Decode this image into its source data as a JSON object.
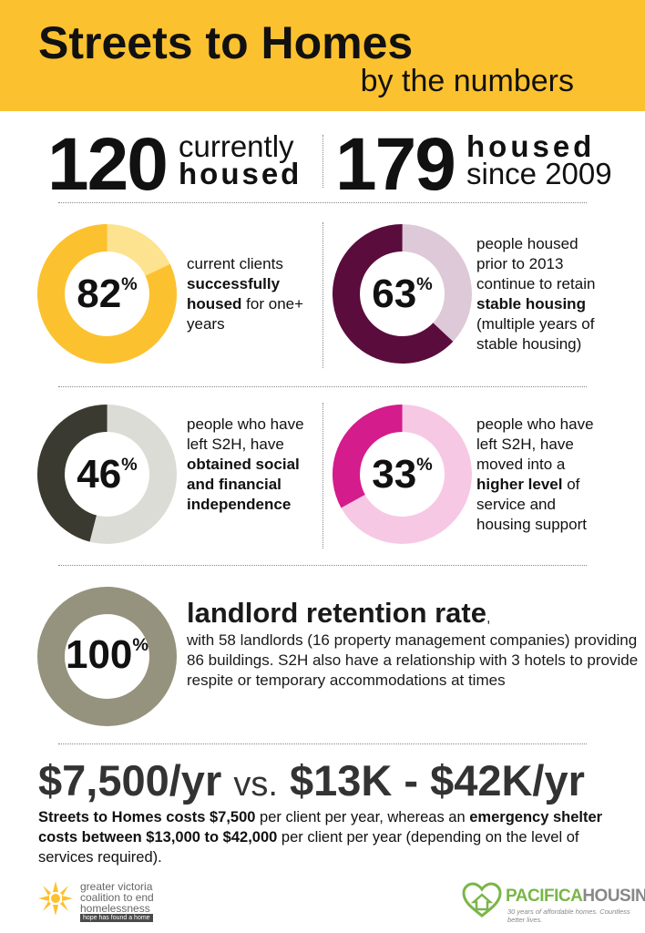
{
  "header": {
    "title": "Streets to Homes",
    "subtitle": "by the numbers"
  },
  "headline_stats": [
    {
      "number": "120",
      "label_line1": "currently",
      "label_line2": "housed"
    },
    {
      "number": "179",
      "label_line1": "housed",
      "label_line2": "since 2009"
    }
  ],
  "stats": [
    {
      "percent": "82",
      "value": 82,
      "color": "#fcc12e",
      "track": "#fde390",
      "desc": [
        "current clients ",
        {
          "b": "successfully housed"
        },
        " for one+ years"
      ]
    },
    {
      "percent": "63",
      "value": 63,
      "color": "#5a0c3c",
      "track": "#ddc9d7",
      "desc": [
        "people housed prior to 2013 continue to retain ",
        {
          "b": "stable housing"
        },
        " (multiple years of stable housing)"
      ]
    },
    {
      "percent": "46",
      "value": 46,
      "color": "#3a3a30",
      "track": "#dcdcd6",
      "desc": [
        "people who have left S2H, have ",
        {
          "b": "obtained social and financial independence"
        }
      ]
    },
    {
      "percent": "33",
      "value": 33,
      "color": "#d41c8c",
      "track": "#f7c8e4",
      "desc": [
        "people who have left S2H, have moved into a ",
        {
          "b": "higher level"
        },
        " of service and housing support"
      ]
    }
  ],
  "landlord": {
    "percent": "100",
    "value": 100,
    "color": "#95937e",
    "title": "landlord retention rate",
    "comma": ",",
    "desc": "with 58 landlords (16 property management companies) providing 86 buildings. S2H also have a relationship with 3 hotels to provide respite or temporary accommodations at times"
  },
  "cost": {
    "left": "$7,500/yr",
    "vs": "vs.",
    "right": "$13K - $42K/yr",
    "desc_b1": "Streets to Homes costs $7,500",
    "desc_t1": " per client per year, whereas an ",
    "desc_b2": "emergency shelter costs between $13,000 to $42,000",
    "desc_t2": " per client per year (depending on the level of services required)."
  },
  "logos": {
    "left_text": [
      "greater victoria",
      "coalition to end",
      "homelessness"
    ],
    "left_tagline": "hope has found a home",
    "right_name_a": "PACIFICA",
    "right_name_b": "HOUSING",
    "right_tagline": "30 years of affordable homes. Countless better lives."
  },
  "percent_sign": "%"
}
